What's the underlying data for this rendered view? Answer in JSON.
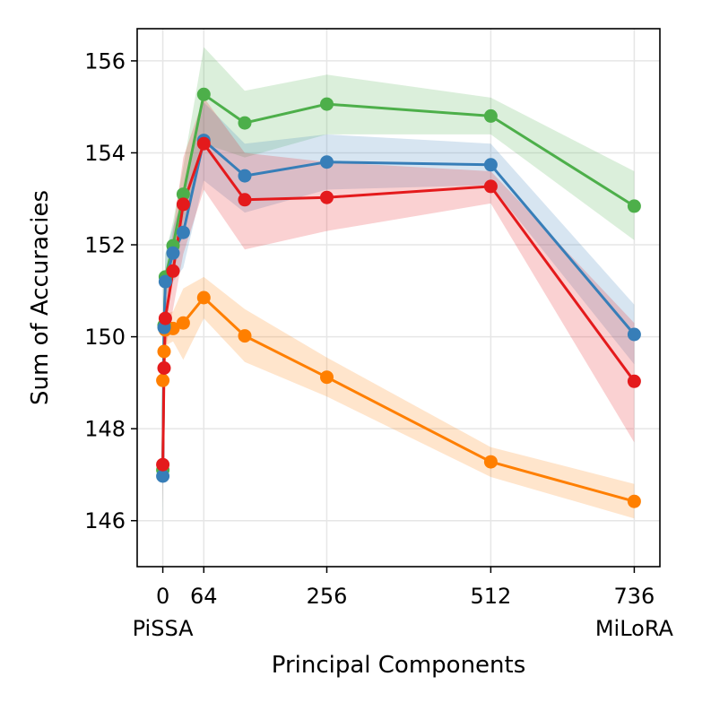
{
  "chart_data": {
    "type": "line",
    "xlabel": "Principal Components",
    "ylabel": "Sum of Accuracies",
    "xlim": [
      -40,
      776
    ],
    "ylim": [
      145.0,
      156.7
    ],
    "xticks": [
      {
        "value": 0,
        "label": "0",
        "sublabel": "PiSSA"
      },
      {
        "value": 64,
        "label": "64",
        "sublabel": ""
      },
      {
        "value": 256,
        "label": "256",
        "sublabel": ""
      },
      {
        "value": 512,
        "label": "512",
        "sublabel": ""
      },
      {
        "value": 736,
        "label": "736",
        "sublabel": "MiLoRA"
      }
    ],
    "yticks": [
      146,
      148,
      150,
      152,
      154,
      156
    ],
    "grid": true,
    "legend": "none",
    "series": [
      {
        "color": "#ff7f00",
        "x": [
          0,
          2,
          4,
          16,
          32,
          64,
          128,
          256,
          512,
          736
        ],
        "y": [
          149.05,
          149.68,
          150.15,
          150.18,
          150.3,
          150.85,
          150.02,
          149.12,
          147.28,
          146.42
        ],
        "lower": [
          148.5,
          149.3,
          149.8,
          149.9,
          149.5,
          150.4,
          149.45,
          148.7,
          146.95,
          146.05
        ],
        "upper": [
          149.6,
          150.06,
          150.5,
          150.55,
          151.05,
          151.3,
          150.6,
          149.55,
          147.6,
          146.8
        ]
      },
      {
        "color": "#4daf4a",
        "x": [
          0,
          2,
          4,
          16,
          32,
          64,
          128,
          256,
          512,
          736
        ],
        "y": [
          147.1,
          150.25,
          151.3,
          151.98,
          153.1,
          155.27,
          154.65,
          155.06,
          154.8,
          152.84
        ],
        "lower": [
          145.8,
          149.6,
          150.8,
          151.5,
          152.5,
          154.2,
          153.9,
          154.4,
          154.4,
          152.1
        ],
        "upper": [
          148.4,
          150.9,
          151.8,
          152.5,
          153.7,
          156.3,
          155.35,
          155.7,
          155.2,
          153.6
        ]
      },
      {
        "color": "#377eb8",
        "x": [
          0,
          2,
          4,
          16,
          32,
          64,
          128,
          256,
          512,
          736
        ],
        "y": [
          146.97,
          150.2,
          151.2,
          151.82,
          152.27,
          154.27,
          153.5,
          153.8,
          153.74,
          150.05
        ],
        "lower": [
          145.6,
          149.5,
          150.6,
          151.2,
          151.5,
          153.4,
          152.7,
          153.2,
          153.3,
          149.4
        ],
        "upper": [
          148.3,
          150.9,
          151.8,
          152.4,
          153.0,
          155.1,
          154.2,
          154.4,
          154.2,
          150.7
        ]
      },
      {
        "color": "#e41a1c",
        "x": [
          0,
          2,
          4,
          16,
          32,
          64,
          128,
          256,
          512,
          736
        ],
        "y": [
          147.22,
          149.32,
          150.4,
          151.43,
          152.88,
          154.2,
          152.98,
          153.03,
          153.27,
          149.03
        ],
        "lower": [
          146.2,
          148.7,
          149.7,
          150.6,
          151.8,
          153.2,
          151.9,
          152.3,
          152.9,
          147.7
        ],
        "upper": [
          148.2,
          149.9,
          151.1,
          152.3,
          153.9,
          155.2,
          154.0,
          153.8,
          153.6,
          150.3
        ]
      }
    ]
  }
}
